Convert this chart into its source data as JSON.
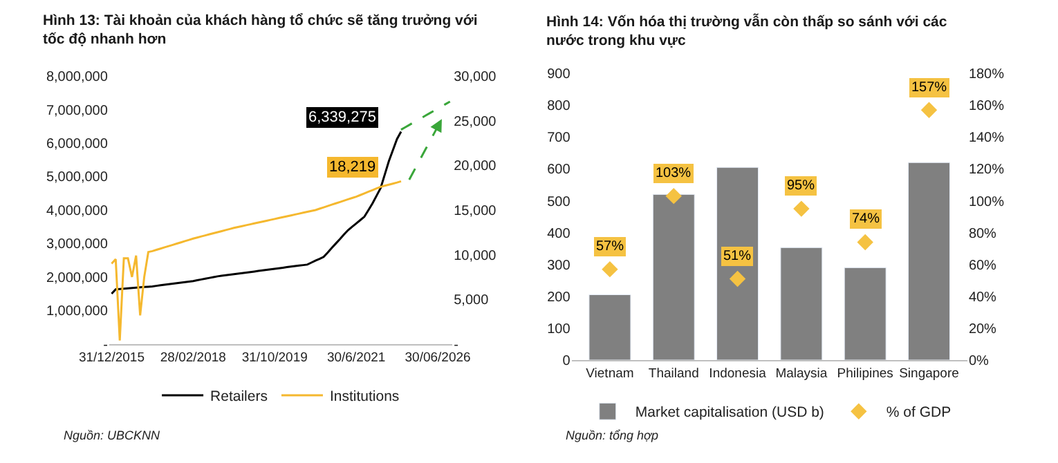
{
  "chart_data": [
    {
      "type": "line",
      "title": "Hình 13: Tài khoản của khách hàng tổ chức sẽ tăng trưởng với tốc độ nhanh hơn",
      "legend": "bottom",
      "categories": [
        "31/12/2015",
        null,
        null,
        null,
        null,
        null,
        null,
        null,
        null,
        null,
        null,
        null,
        null,
        null,
        null,
        null,
        null,
        null,
        null,
        null,
        "28/02/2018",
        null,
        null,
        null,
        null,
        null,
        null,
        null,
        null,
        null,
        null,
        null,
        null,
        null,
        null,
        null,
        null,
        null,
        null,
        null,
        "31/10/2019",
        null,
        null,
        null,
        null,
        null,
        null,
        null,
        null,
        null,
        null,
        null,
        null,
        null,
        null,
        null,
        null,
        null,
        null,
        null,
        "30/6/2021",
        null,
        null,
        null,
        null,
        null,
        null,
        null,
        null,
        null,
        null,
        null,
        null,
        null,
        null,
        null,
        null,
        null,
        null,
        null,
        "30/06/2026",
        null,
        null,
        null
      ],
      "ylim": [
        0,
        8000000
      ],
      "yticks": [
        {
          "value": 0,
          "label": "-"
        },
        {
          "value": 1000000,
          "label": "1,000,000"
        },
        {
          "value": 2000000,
          "label": "2,000,000"
        },
        {
          "value": 3000000,
          "label": "3,000,000"
        },
        {
          "value": 4000000,
          "label": "4,000,000"
        },
        {
          "value": 5000000,
          "label": "5,000,000"
        },
        {
          "value": 6000000,
          "label": "6,000,000"
        },
        {
          "value": 7000000,
          "label": "7,000,000"
        },
        {
          "value": 8000000,
          "label": "8,000,000"
        }
      ],
      "y2lim": [
        0,
        30000
      ],
      "y2ticks": [
        {
          "value": 0,
          "label": "-"
        },
        {
          "value": 5000,
          "label": "5,000"
        },
        {
          "value": 10000,
          "label": "10,000"
        },
        {
          "value": 15000,
          "label": "15,000"
        },
        {
          "value": 20000,
          "label": "20,000"
        },
        {
          "value": 25000,
          "label": "25,000"
        },
        {
          "value": 30000,
          "label": "30,000"
        }
      ],
      "series": [
        {
          "name": "Retailers",
          "color": "#000000",
          "values": [
            1500000,
            1630000,
            1640000,
            1650000,
            1660000,
            1670000,
            1680000,
            1690000,
            1700000,
            1710000,
            1720000,
            1736000,
            1752000,
            1768000,
            1784000,
            1800000,
            1816000,
            1832000,
            1848000,
            1864000,
            1880000,
            1903000,
            1927000,
            1950000,
            1973000,
            1997000,
            2020000,
            2036000,
            2052000,
            2068000,
            2084000,
            2100000,
            2116000,
            2132000,
            2148000,
            2164000,
            2180000,
            2196000,
            2212000,
            2229000,
            2245000,
            2261000,
            2277000,
            2294000,
            2310000,
            2325000,
            2340000,
            2355000,
            2370000,
            2430000,
            2490000,
            2540000,
            2600000,
            2730000,
            2870000,
            3000000,
            3130000,
            3270000,
            3400000,
            3500000,
            3600000,
            3700000,
            3800000,
            4000000,
            4200000,
            4430000,
            4660000,
            5060000,
            5460000,
            5790000,
            6120000,
            6339275,
            null,
            null,
            null,
            null,
            null,
            null,
            null,
            null,
            null,
            null,
            null,
            null
          ],
          "value_labels": [
            null,
            null,
            null,
            null,
            null,
            null,
            null,
            null,
            null,
            null,
            null,
            null,
            null,
            null,
            null,
            null,
            null,
            null,
            null,
            null,
            null,
            null,
            null,
            null,
            null,
            null,
            null,
            null,
            null,
            null,
            null,
            null,
            null,
            null,
            null,
            null,
            null,
            null,
            null,
            null,
            null,
            null,
            null,
            null,
            null,
            null,
            null,
            null,
            null,
            null,
            null,
            null,
            null,
            null,
            null,
            null,
            null,
            null,
            null,
            null,
            null,
            null,
            null,
            null,
            null,
            null,
            null,
            null,
            null,
            null,
            null,
            "6,339,275",
            null,
            null,
            null,
            null,
            null,
            null,
            null,
            null,
            null,
            null,
            null,
            null
          ]
        },
        {
          "name": "Institutions",
          "color": "#f5b82e",
          "axis": "y2",
          "values": [
            9000,
            9500,
            400,
            9600,
            9600,
            7500,
            9900,
            3200,
            7500,
            10300,
            10400,
            10540,
            10680,
            10820,
            10960,
            11100,
            11240,
            11380,
            11520,
            11660,
            11800,
            11920,
            12040,
            12160,
            12280,
            12400,
            12520,
            12640,
            12760,
            12880,
            13000,
            13100,
            13200,
            13300,
            13400,
            13500,
            13600,
            13700,
            13800,
            13900,
            14000,
            14100,
            14200,
            14300,
            14400,
            14500,
            14600,
            14700,
            14800,
            14900,
            15000,
            15150,
            15300,
            15450,
            15600,
            15750,
            15900,
            16050,
            16200,
            16350,
            16500,
            16680,
            16870,
            17050,
            17230,
            17420,
            17600,
            17720,
            17840,
            17960,
            18080,
            18219,
            null,
            null,
            null,
            null,
            null,
            null,
            null,
            null,
            null,
            null,
            null,
            null
          ],
          "value_labels": [
            null,
            null,
            null,
            null,
            null,
            null,
            null,
            null,
            null,
            null,
            null,
            null,
            null,
            null,
            null,
            null,
            null,
            null,
            null,
            null,
            null,
            null,
            null,
            null,
            null,
            null,
            null,
            null,
            null,
            null,
            null,
            null,
            null,
            null,
            null,
            null,
            null,
            null,
            null,
            null,
            null,
            null,
            null,
            null,
            null,
            null,
            null,
            null,
            null,
            null,
            null,
            null,
            null,
            null,
            null,
            null,
            null,
            null,
            null,
            null,
            null,
            null,
            null,
            null,
            null,
            null,
            null,
            null,
            null,
            null,
            null,
            "18,219",
            null,
            null,
            null,
            null,
            null,
            null,
            null,
            null,
            null,
            null,
            null,
            null
          ]
        },
        {
          "type": "line",
          "color": "#3aa63a",
          "line_style": "dashed",
          "values": [
            null,
            null,
            null,
            null,
            null,
            null,
            null,
            null,
            null,
            null,
            null,
            null,
            null,
            null,
            null,
            null,
            null,
            null,
            null,
            null,
            null,
            null,
            null,
            null,
            null,
            null,
            null,
            null,
            null,
            null,
            null,
            null,
            null,
            null,
            null,
            null,
            null,
            null,
            null,
            null,
            null,
            null,
            null,
            null,
            null,
            null,
            null,
            null,
            null,
            null,
            null,
            null,
            null,
            null,
            null,
            null,
            null,
            null,
            null,
            null,
            null,
            null,
            null,
            null,
            null,
            null,
            null,
            null,
            null,
            null,
            null,
            6400000,
            6470000,
            6540000,
            6610000,
            6680000,
            6750000,
            6820000,
            6890000,
            6960000,
            7030000,
            7100000,
            7170000,
            7240000
          ]
        },
        {
          "type": "line",
          "color": "#3aa63a",
          "line_style": "dashed",
          "axis": "y2",
          "values": [
            null,
            null,
            null,
            null,
            null,
            null,
            null,
            null,
            null,
            null,
            null,
            null,
            null,
            null,
            null,
            null,
            null,
            null,
            null,
            null,
            null,
            null,
            null,
            null,
            null,
            null,
            null,
            null,
            null,
            null,
            null,
            null,
            null,
            null,
            null,
            null,
            null,
            null,
            null,
            null,
            null,
            null,
            null,
            null,
            null,
            null,
            null,
            null,
            null,
            null,
            null,
            null,
            null,
            null,
            null,
            null,
            null,
            null,
            null,
            null,
            null,
            null,
            null,
            null,
            null,
            null,
            null,
            null,
            null,
            null,
            null,
            null,
            null,
            18400,
            19250,
            20100,
            20950,
            21800,
            22650,
            23500,
            24350,
            25200,
            null,
            null
          ]
        }
      ],
      "annotations": [
        "Nguồn: UBCKNN"
      ]
    },
    {
      "type": "bar",
      "title": "Hình 14: Vốn hóa thị trường vẫn còn thấp so sánh với các nước trong khu vực",
      "legend": "bottom",
      "categories": [
        "Vietnam",
        "Thailand",
        "Indonesia",
        "Malaysia",
        "Philipines",
        "Singapore"
      ],
      "ylim": [
        0,
        900
      ],
      "yticks": [
        0,
        100,
        200,
        300,
        400,
        500,
        600,
        700,
        800,
        900
      ],
      "y2lim": [
        0,
        180
      ],
      "y2ticks": [
        {
          "value": 0,
          "label": "0%"
        },
        {
          "value": 20,
          "label": "20%"
        },
        {
          "value": 40,
          "label": "40%"
        },
        {
          "value": 60,
          "label": "60%"
        },
        {
          "value": 80,
          "label": "80%"
        },
        {
          "value": 100,
          "label": "100%"
        },
        {
          "value": 120,
          "label": "120%"
        },
        {
          "value": 140,
          "label": "140%"
        },
        {
          "value": 160,
          "label": "160%"
        },
        {
          "value": 180,
          "label": "180%"
        }
      ],
      "series": [
        {
          "name": "Market capitalisation (USD b)",
          "color": "#808080",
          "values": [
            205,
            520,
            605,
            353,
            290,
            620
          ]
        },
        {
          "name": "% of GDP",
          "type": "scatter",
          "marker": "diamond",
          "color": "#f5c242",
          "axis": "y2",
          "values": [
            57,
            103,
            51,
            95,
            74,
            157
          ],
          "value_labels": [
            "57%",
            "103%",
            "51%",
            "95%",
            "74%",
            "157%"
          ]
        }
      ],
      "annotations": [
        "Nguồn: tổng hợp"
      ]
    }
  ]
}
